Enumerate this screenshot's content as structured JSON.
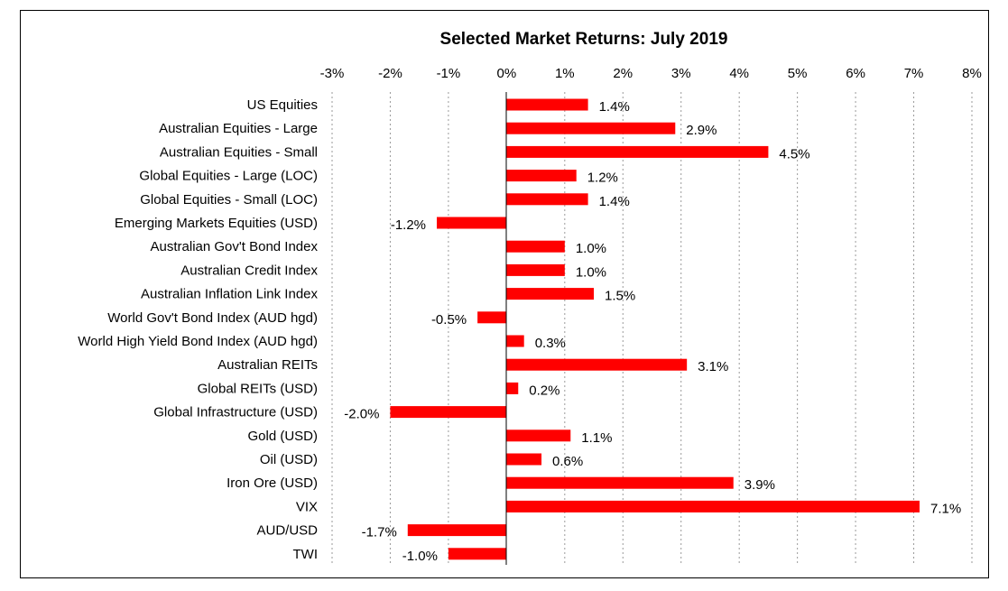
{
  "chart_data": {
    "type": "bar",
    "orientation": "horizontal",
    "title": "Selected Market Returns: July 2019",
    "xlabel": "",
    "ylabel": "",
    "xlim": [
      -3,
      8
    ],
    "x_ticks": [
      "-3%",
      "-2%",
      "-1%",
      "0%",
      "1%",
      "2%",
      "3%",
      "4%",
      "5%",
      "6%",
      "7%",
      "8%"
    ],
    "x_tick_values": [
      -3,
      -2,
      -1,
      0,
      1,
      2,
      3,
      4,
      5,
      6,
      7,
      8
    ],
    "x_axis_position": "top",
    "grid": "vertical dashed",
    "legend": "none",
    "bar_color": "#ff0000",
    "categories": [
      "US Equities",
      "Australian Equities - Large",
      "Australian Equities - Small",
      "Global Equities - Large (LOC)",
      "Global Equities - Small (LOC)",
      "Emerging Markets Equities (USD)",
      "Australian Gov't Bond Index",
      "Australian Credit Index",
      "Australian Inflation Link Index",
      "World Gov't Bond Index (AUD hgd)",
      "World High Yield Bond Index (AUD hgd)",
      "Australian REITs",
      "Global REITs (USD)",
      "Global Infrastructure (USD)",
      "Gold (USD)",
      "Oil (USD)",
      "Iron Ore (USD)",
      "VIX",
      "AUD/USD",
      "TWI"
    ],
    "values": [
      1.4,
      2.9,
      4.5,
      1.2,
      1.4,
      -1.2,
      1.0,
      1.0,
      1.5,
      -0.5,
      0.3,
      3.1,
      0.2,
      -2.0,
      1.1,
      0.6,
      3.9,
      7.1,
      -1.7,
      -1.0
    ],
    "data_labels": [
      "1.4%",
      "2.9%",
      "4.5%",
      "1.2%",
      "1.4%",
      "-1.2%",
      "1.0%",
      "1.0%",
      "1.5%",
      "-0.5%",
      "0.3%",
      "3.1%",
      "0.2%",
      "-2.0%",
      "1.1%",
      "0.6%",
      "3.9%",
      "7.1%",
      "-1.7%",
      "-1.0%"
    ]
  }
}
